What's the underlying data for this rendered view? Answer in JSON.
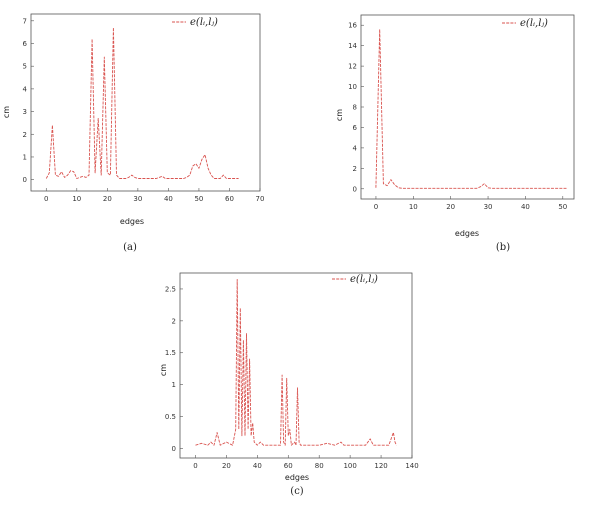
{
  "colors": {
    "series": "#d9534f",
    "axis": "#555555",
    "background": "#ffffff"
  },
  "chart_data": [
    {
      "caption": "(a)",
      "type": "line",
      "xlabel": "edges",
      "ylabel": "cm",
      "legend": "e(l_i, l_j)",
      "legend_label": "e(lᵢ,lⱼ)",
      "legend_placement": "top-right",
      "grid": false,
      "xlim": [
        -5,
        70
      ],
      "ylim": [
        -0.5,
        7.3
      ],
      "xticks": [
        0,
        10,
        20,
        30,
        40,
        50,
        60,
        70
      ],
      "yticks": [
        0,
        1,
        2,
        3,
        4,
        5,
        6,
        7
      ],
      "x": [
        0,
        1,
        2,
        3,
        4,
        5,
        6,
        7,
        8,
        9,
        10,
        11,
        12,
        13,
        14,
        15,
        16,
        17,
        18,
        19,
        20,
        21,
        22,
        23,
        24,
        25,
        26,
        27,
        28,
        29,
        30,
        31,
        32,
        33,
        34,
        35,
        36,
        37,
        38,
        39,
        40,
        41,
        42,
        43,
        44,
        45,
        46,
        47,
        48,
        49,
        50,
        51,
        52,
        53,
        54,
        55,
        56,
        57,
        58,
        59,
        60,
        61,
        62,
        63
      ],
      "y": [
        0.05,
        0.3,
        2.4,
        0.2,
        0.15,
        0.35,
        0.1,
        0.2,
        0.4,
        0.35,
        0.05,
        0.1,
        0.15,
        0.1,
        0.2,
        6.2,
        0.3,
        2.7,
        0.2,
        5.4,
        0.3,
        0.2,
        6.7,
        0.2,
        0.05,
        0.05,
        0.05,
        0.1,
        0.2,
        0.1,
        0.05,
        0.05,
        0.05,
        0.05,
        0.05,
        0.05,
        0.05,
        0.1,
        0.15,
        0.05,
        0.05,
        0.05,
        0.05,
        0.05,
        0.05,
        0.05,
        0.1,
        0.2,
        0.6,
        0.7,
        0.5,
        0.9,
        1.1,
        0.5,
        0.2,
        0.05,
        0.05,
        0.05,
        0.2,
        0.05,
        0.05,
        0.05,
        0.05,
        0.05
      ]
    },
    {
      "caption": "(b)",
      "type": "line",
      "xlabel": "edges",
      "ylabel": "cm",
      "legend": "e(l_i, l_j)",
      "legend_label": "e(lᵢ,lⱼ)",
      "legend_placement": "top-right",
      "grid": false,
      "xlim": [
        -4,
        53
      ],
      "ylim": [
        -1,
        17
      ],
      "xticks": [
        0,
        10,
        20,
        30,
        40,
        50
      ],
      "yticks": [
        0,
        2,
        4,
        6,
        8,
        10,
        12,
        14,
        16
      ],
      "x": [
        0,
        1,
        2,
        3,
        4,
        5,
        6,
        7,
        8,
        9,
        10,
        11,
        12,
        13,
        14,
        15,
        16,
        17,
        18,
        19,
        20,
        21,
        22,
        23,
        24,
        25,
        26,
        27,
        28,
        29,
        30,
        31,
        32,
        33,
        34,
        35,
        36,
        37,
        38,
        39,
        40,
        41,
        42,
        43,
        44,
        45,
        46,
        47,
        48,
        49,
        50,
        51
      ],
      "y": [
        0.1,
        15.6,
        0.5,
        0.3,
        0.9,
        0.4,
        0.1,
        0.05,
        0.05,
        0.05,
        0.05,
        0.05,
        0.05,
        0.05,
        0.05,
        0.05,
        0.05,
        0.05,
        0.05,
        0.05,
        0.05,
        0.05,
        0.05,
        0.05,
        0.05,
        0.05,
        0.05,
        0.05,
        0.2,
        0.5,
        0.1,
        0.05,
        0.05,
        0.05,
        0.05,
        0.05,
        0.05,
        0.05,
        0.05,
        0.05,
        0.05,
        0.05,
        0.05,
        0.05,
        0.05,
        0.05,
        0.05,
        0.05,
        0.05,
        0.05,
        0.05,
        0.05
      ]
    },
    {
      "caption": "(c)",
      "type": "line",
      "xlabel": "edges",
      "ylabel": "cm",
      "legend": "e(l_i, l_j)",
      "legend_label": "e(lᵢ,lⱼ)",
      "legend_placement": "top-right",
      "grid": false,
      "xlim": [
        -10,
        140
      ],
      "ylim": [
        -0.15,
        2.75
      ],
      "xticks": [
        0,
        20,
        40,
        60,
        80,
        100,
        120,
        140
      ],
      "yticks": [
        0,
        0.5,
        1,
        1.5,
        2,
        2.5
      ],
      "x": [
        0,
        4,
        8,
        10,
        12,
        14,
        16,
        20,
        24,
        26,
        27,
        28,
        29,
        30,
        31,
        32,
        33,
        34,
        35,
        36,
        37,
        38,
        40,
        42,
        44,
        50,
        55,
        56,
        57,
        58,
        59,
        60,
        61,
        62,
        64,
        65,
        66,
        67,
        68,
        70,
        75,
        80,
        85,
        90,
        94,
        96,
        100,
        105,
        110,
        113,
        115,
        120,
        125,
        128,
        129,
        130
      ],
      "y": [
        0.05,
        0.08,
        0.05,
        0.1,
        0.05,
        0.25,
        0.05,
        0.1,
        0.05,
        0.3,
        2.65,
        0.3,
        2.2,
        0.2,
        1.7,
        0.2,
        1.8,
        0.3,
        1.4,
        0.2,
        0.4,
        0.1,
        0.05,
        0.1,
        0.05,
        0.05,
        0.05,
        1.15,
        0.1,
        0.05,
        1.1,
        0.2,
        0.3,
        0.05,
        0.1,
        0.05,
        0.95,
        0.1,
        0.05,
        0.05,
        0.05,
        0.05,
        0.08,
        0.05,
        0.1,
        0.05,
        0.05,
        0.05,
        0.05,
        0.15,
        0.05,
        0.05,
        0.05,
        0.25,
        0.1,
        0.05
      ]
    }
  ]
}
